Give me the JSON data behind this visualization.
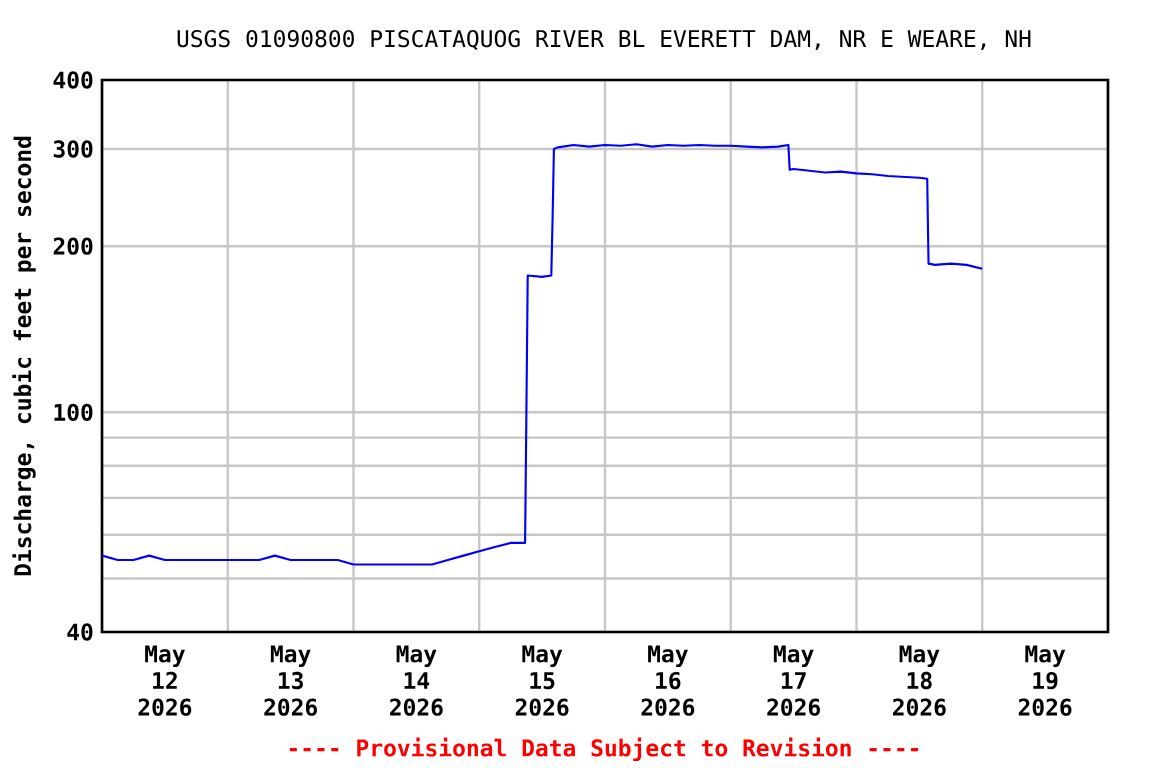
{
  "chart_data": {
    "type": "line",
    "title": "USGS 01090800 PISCATAQUOG RIVER BL EVERETT DAM, NR E WEARE, NH",
    "ylabel": "Discharge, cubic feet per second",
    "annotations": [
      "---- Provisional Data Subject to Revision ----"
    ],
    "log": "y",
    "grid": true,
    "marker": "none",
    "line_style": "solid",
    "xlim": [
      "2026-05-12T00:00",
      "2026-05-20T00:00"
    ],
    "xticks": [
      {
        "value": "2026-05-12T12:00",
        "label": "May 12 2026"
      },
      {
        "value": "2026-05-13T12:00",
        "label": "May 13 2026"
      },
      {
        "value": "2026-05-14T12:00",
        "label": "May 14 2026"
      },
      {
        "value": "2026-05-15T12:00",
        "label": "May 15 2026"
      },
      {
        "value": "2026-05-16T12:00",
        "label": "May 16 2026"
      },
      {
        "value": "2026-05-17T12:00",
        "label": "May 17 2026"
      },
      {
        "value": "2026-05-18T12:00",
        "label": "May 18 2026"
      },
      {
        "value": "2026-05-19T12:00",
        "label": "May 19 2026"
      },
      {
        "value": "2026-05-13T00:00",
        "label": null
      },
      {
        "value": "2026-05-14T00:00",
        "label": null
      },
      {
        "value": "2026-05-15T00:00",
        "label": null
      },
      {
        "value": "2026-05-16T00:00",
        "label": null
      },
      {
        "value": "2026-05-17T00:00",
        "label": null
      },
      {
        "value": "2026-05-18T00:00",
        "label": null
      },
      {
        "value": "2026-05-19T00:00",
        "label": null
      }
    ],
    "ylim": [
      40,
      400
    ],
    "yticks": [
      40,
      {
        "value": 50,
        "label": null
      },
      {
        "value": 60,
        "label": null
      },
      {
        "value": 70,
        "label": null
      },
      {
        "value": 80,
        "label": null
      },
      {
        "value": 90,
        "label": null
      },
      100,
      200,
      300,
      400
    ],
    "series": [
      {
        "color": "#0000ff",
        "x": [
          "2026-05-12T00:00",
          "2026-05-12T03:00",
          "2026-05-12T06:00",
          "2026-05-12T09:00",
          "2026-05-12T12:00",
          "2026-05-12T15:00",
          "2026-05-12T18:00",
          "2026-05-12T21:00",
          "2026-05-13T00:00",
          "2026-05-13T03:00",
          "2026-05-13T06:00",
          "2026-05-13T09:00",
          "2026-05-13T12:00",
          "2026-05-13T15:00",
          "2026-05-13T18:00",
          "2026-05-13T21:00",
          "2026-05-14T00:00",
          "2026-05-14T03:00",
          "2026-05-14T06:00",
          "2026-05-14T09:00",
          "2026-05-14T12:00",
          "2026-05-14T15:00",
          "2026-05-14T18:00",
          "2026-05-14T21:00",
          "2026-05-15T00:00",
          "2026-05-15T03:00",
          "2026-05-15T06:00",
          "2026-05-15T08:45",
          "2026-05-15T09:00",
          "2026-05-15T09:15",
          "2026-05-15T12:00",
          "2026-05-15T13:45",
          "2026-05-15T14:00",
          "2026-05-15T14:15",
          "2026-05-15T15:00",
          "2026-05-15T18:00",
          "2026-05-15T21:00",
          "2026-05-16T00:00",
          "2026-05-16T03:00",
          "2026-05-16T06:00",
          "2026-05-16T09:00",
          "2026-05-16T12:00",
          "2026-05-16T15:00",
          "2026-05-16T18:00",
          "2026-05-16T21:00",
          "2026-05-17T00:00",
          "2026-05-17T03:00",
          "2026-05-17T06:00",
          "2026-05-17T09:00",
          "2026-05-17T11:00",
          "2026-05-17T11:15",
          "2026-05-17T12:00",
          "2026-05-17T15:00",
          "2026-05-17T18:00",
          "2026-05-17T21:00",
          "2026-05-18T00:00",
          "2026-05-18T03:00",
          "2026-05-18T06:00",
          "2026-05-18T09:00",
          "2026-05-18T12:00",
          "2026-05-18T13:30",
          "2026-05-18T13:45",
          "2026-05-18T15:00",
          "2026-05-18T18:00",
          "2026-05-18T21:00",
          "2026-05-19T00:00"
        ],
        "values": [
          55,
          54,
          54,
          55,
          54,
          54,
          54,
          54,
          54,
          54,
          54,
          55,
          54,
          54,
          54,
          54,
          53,
          53,
          53,
          53,
          53,
          53,
          54,
          55,
          56,
          57,
          58,
          58,
          100,
          177,
          176,
          177,
          225,
          300,
          302,
          305,
          303,
          305,
          304,
          306,
          303,
          305,
          304,
          305,
          304,
          304,
          303,
          302,
          303,
          305,
          275,
          276,
          274,
          272,
          273,
          271,
          270,
          268,
          267,
          266,
          265,
          186,
          185,
          186,
          185,
          182
        ]
      }
    ]
  }
}
